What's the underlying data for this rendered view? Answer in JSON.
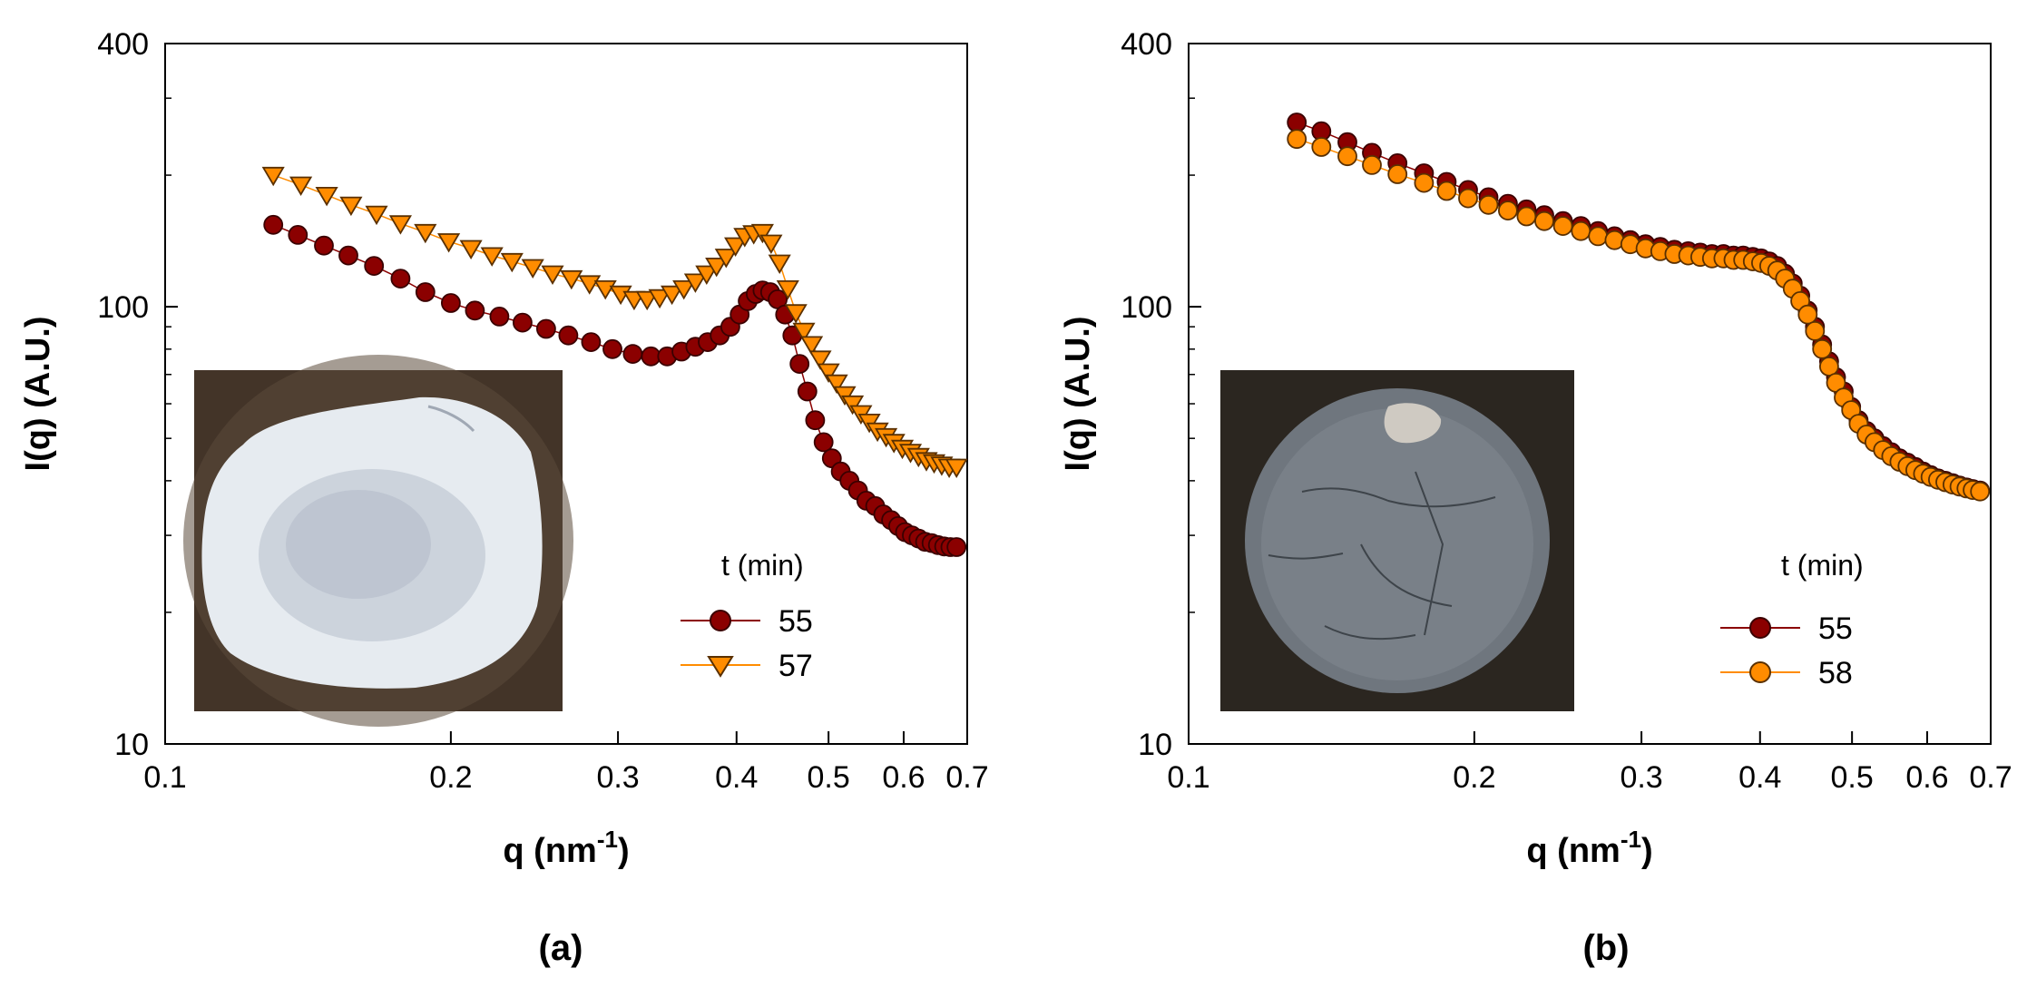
{
  "chart_data": [
    {
      "type": "scatter",
      "panel_label": "(a)",
      "xlabel": "q (nm",
      "xlabel_sup": "-1",
      "xlabel_end": ")",
      "ylabel": "I(q)  (A.U.)",
      "x_scale": "log",
      "y_scale": "log",
      "xlim": [
        0.1,
        0.7
      ],
      "ylim": [
        10,
        400
      ],
      "x_ticks": [
        "0.1",
        "0.2",
        "0.3",
        "0.4",
        "0.5",
        "0.6",
        "0.7"
      ],
      "y_ticks": [
        "10",
        "100",
        "400"
      ],
      "grid": false,
      "legend_title": "t (min)",
      "legend_position": "lower-right",
      "inset": "photo of white sample in dish",
      "series": [
        {
          "name": "55",
          "marker": "circle",
          "color": "#8B0000",
          "x": [
            0.13,
            0.138,
            0.147,
            0.156,
            0.166,
            0.177,
            0.188,
            0.2,
            0.212,
            0.225,
            0.238,
            0.252,
            0.266,
            0.281,
            0.296,
            0.311,
            0.325,
            0.338,
            0.35,
            0.362,
            0.373,
            0.384,
            0.394,
            0.403,
            0.411,
            0.419,
            0.426,
            0.434,
            0.442,
            0.45,
            0.458,
            0.466,
            0.475,
            0.484,
            0.494,
            0.504,
            0.515,
            0.526,
            0.537,
            0.548,
            0.56,
            0.571,
            0.582,
            0.592,
            0.602,
            0.612,
            0.622,
            0.632,
            0.642,
            0.652,
            0.662,
            0.672,
            0.682
          ],
          "y": [
            154,
            146,
            138,
            131,
            124,
            116,
            108,
            102,
            98,
            95,
            92,
            89,
            86,
            83,
            80,
            78,
            77,
            77,
            79,
            81,
            83,
            86,
            90,
            96,
            103,
            107,
            109,
            108,
            104,
            96,
            86,
            74,
            64,
            55,
            49,
            45,
            42,
            40,
            38,
            36,
            35,
            33.5,
            32.5,
            31.5,
            30.5,
            30,
            29.5,
            29,
            28.8,
            28.5,
            28.3,
            28.2,
            28.2
          ]
        },
        {
          "name": "57",
          "marker": "triangle-down",
          "color": "#FF8C00",
          "x": [
            0.13,
            0.139,
            0.148,
            0.157,
            0.167,
            0.177,
            0.188,
            0.199,
            0.21,
            0.221,
            0.232,
            0.244,
            0.256,
            0.268,
            0.28,
            0.291,
            0.302,
            0.312,
            0.322,
            0.332,
            0.342,
            0.352,
            0.362,
            0.372,
            0.381,
            0.39,
            0.399,
            0.408,
            0.417,
            0.426,
            0.435,
            0.444,
            0.453,
            0.462,
            0.471,
            0.48,
            0.49,
            0.5,
            0.51,
            0.52,
            0.53,
            0.541,
            0.552,
            0.563,
            0.575,
            0.586,
            0.598,
            0.61,
            0.622,
            0.634,
            0.646,
            0.658,
            0.67,
            0.682
          ],
          "y": [
            200,
            190,
            180,
            171,
            163,
            155,
            148,
            141,
            136,
            131,
            127,
            123,
            119,
            116,
            113,
            110,
            107,
            104,
            104,
            105,
            107,
            110,
            114,
            119,
            124,
            130,
            138,
            145,
            147,
            148,
            140,
            126,
            110,
            97,
            88,
            82,
            76,
            71,
            67,
            63,
            60,
            57,
            54.5,
            52,
            50.5,
            49,
            47.5,
            46.5,
            45.5,
            44.5,
            44,
            43.5,
            43,
            43
          ]
        }
      ]
    },
    {
      "type": "scatter",
      "panel_label": "(b)",
      "xlabel": "q (nm",
      "xlabel_sup": "-1",
      "xlabel_end": ")",
      "ylabel": "I(q)  (A.U.)",
      "x_scale": "log",
      "y_scale": "log",
      "xlim": [
        0.1,
        0.7
      ],
      "ylim": [
        10,
        400
      ],
      "x_ticks": [
        "0.1",
        "0.2",
        "0.3",
        "0.4",
        "0.5",
        "0.6",
        "0.7"
      ],
      "y_ticks": [
        "10",
        "100",
        "400"
      ],
      "grid": false,
      "legend_title": "t (min)",
      "legend_position": "lower-right",
      "inset": "photo of dark cracked sample in dish",
      "series": [
        {
          "name": "55",
          "marker": "circle",
          "color": "#8B0000",
          "x": [
            0.13,
            0.138,
            0.147,
            0.156,
            0.166,
            0.177,
            0.187,
            0.197,
            0.207,
            0.217,
            0.227,
            0.237,
            0.248,
            0.259,
            0.27,
            0.281,
            0.292,
            0.303,
            0.314,
            0.325,
            0.336,
            0.346,
            0.356,
            0.366,
            0.375,
            0.384,
            0.393,
            0.401,
            0.409,
            0.417,
            0.425,
            0.433,
            0.441,
            0.449,
            0.457,
            0.465,
            0.473,
            0.481,
            0.49,
            0.499,
            0.508,
            0.518,
            0.528,
            0.539,
            0.55,
            0.561,
            0.572,
            0.583,
            0.594,
            0.605,
            0.616,
            0.627,
            0.638,
            0.649,
            0.66,
            0.67,
            0.682
          ],
          "y": [
            264,
            252,
            238,
            225,
            213,
            202,
            193,
            185,
            178,
            172,
            167,
            162,
            157,
            153,
            149,
            145,
            142,
            139,
            137,
            135,
            134,
            133,
            132,
            132,
            131,
            131,
            130,
            129,
            127,
            124,
            119,
            113,
            106,
            98,
            90,
            82,
            75,
            69,
            64,
            59,
            55,
            52,
            50,
            48,
            46.5,
            45,
            44,
            43,
            42,
            41.2,
            40.5,
            40,
            39.5,
            39,
            38.6,
            38.3,
            38
          ]
        },
        {
          "name": "58",
          "marker": "circle",
          "color": "#FF8C00",
          "x": [
            0.13,
            0.138,
            0.147,
            0.156,
            0.166,
            0.177,
            0.187,
            0.197,
            0.207,
            0.217,
            0.227,
            0.237,
            0.248,
            0.259,
            0.27,
            0.281,
            0.292,
            0.303,
            0.314,
            0.325,
            0.336,
            0.346,
            0.356,
            0.366,
            0.375,
            0.384,
            0.393,
            0.401,
            0.409,
            0.417,
            0.425,
            0.433,
            0.441,
            0.449,
            0.457,
            0.465,
            0.473,
            0.481,
            0.49,
            0.499,
            0.508,
            0.518,
            0.528,
            0.539,
            0.55,
            0.561,
            0.572,
            0.583,
            0.594,
            0.605,
            0.616,
            0.627,
            0.638,
            0.649,
            0.66,
            0.67,
            0.682
          ],
          "y": [
            242,
            232,
            221,
            211,
            201,
            192,
            184,
            177,
            171,
            166,
            161,
            157,
            153,
            149,
            145,
            142,
            139,
            136,
            134,
            132,
            131,
            130,
            129,
            129,
            128,
            128,
            127,
            126,
            124,
            121,
            116,
            110,
            103,
            96,
            88,
            80,
            73,
            67,
            62,
            58,
            54,
            51,
            49,
            47,
            45.5,
            44.2,
            43.2,
            42.3,
            41.5,
            40.8,
            40.2,
            39.7,
            39.2,
            38.8,
            38.4,
            38.1,
            37.8
          ]
        }
      ]
    }
  ]
}
